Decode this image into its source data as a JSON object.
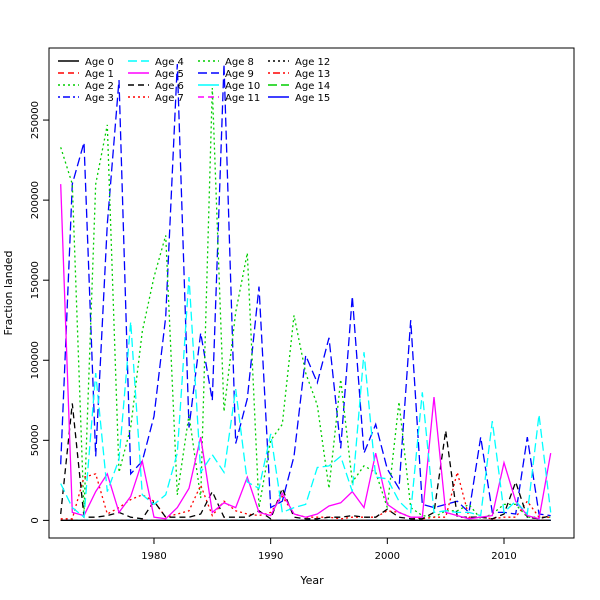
{
  "chart_data": {
    "type": "line",
    "title": "",
    "xlabel": "Year",
    "ylabel": "Fraction landed",
    "xlim": [
      1971,
      2016
    ],
    "ylim": [
      -11000,
      295000
    ],
    "x_ticks": [
      1980,
      1990,
      2000,
      2010
    ],
    "y_ticks": [
      0,
      50000,
      100000,
      150000,
      200000,
      250000
    ],
    "grid": false,
    "legend_position": "top-left",
    "x": [
      1972,
      1973,
      1974,
      1975,
      1976,
      1977,
      1978,
      1979,
      1980,
      1981,
      1982,
      1983,
      1984,
      1985,
      1986,
      1987,
      1988,
      1989,
      1990,
      1991,
      1992,
      1993,
      1994,
      1995,
      1996,
      1997,
      1998,
      1999,
      2000,
      2001,
      2002,
      2003,
      2004,
      2005,
      2006,
      2007,
      2008,
      2009,
      2010,
      2011,
      2012,
      2013,
      2014
    ],
    "series": [
      {
        "name": "Age 0",
        "color": "#000000",
        "dash": "solid",
        "values": [
          0,
          0,
          0,
          0,
          0,
          0,
          0,
          0,
          0,
          0,
          0,
          0,
          0,
          0,
          0,
          0,
          0,
          0,
          0,
          0,
          0,
          0,
          0,
          0,
          0,
          0,
          0,
          0,
          0,
          0,
          0,
          0,
          0,
          0,
          0,
          0,
          0,
          0,
          0,
          0,
          0,
          0,
          0
        ]
      },
      {
        "name": "Age 1",
        "color": "#ff0000",
        "dash": "dashed",
        "values": [
          0,
          0,
          0,
          0,
          0,
          0,
          0,
          0,
          0,
          0,
          0,
          0,
          0,
          0,
          0,
          0,
          0,
          0,
          0,
          0,
          0,
          0,
          0,
          0,
          0,
          0,
          0,
          0,
          0,
          0,
          0,
          0,
          0,
          0,
          0,
          0,
          0,
          0,
          0,
          0,
          0,
          0,
          0
        ]
      },
      {
        "name": "Age 2",
        "color": "#00cd00",
        "dash": "dotted",
        "values": [
          0,
          0,
          0,
          0,
          0,
          0,
          0,
          0,
          0,
          0,
          0,
          0,
          0,
          0,
          0,
          0,
          0,
          0,
          0,
          0,
          0,
          0,
          0,
          0,
          0,
          0,
          0,
          0,
          0,
          0,
          0,
          0,
          0,
          0,
          0,
          0,
          0,
          0,
          0,
          0,
          0,
          0,
          0
        ]
      },
      {
        "name": "Age 3",
        "color": "#0000ff",
        "dash": "dotdash",
        "values": [
          0,
          0,
          0,
          0,
          0,
          0,
          0,
          0,
          0,
          0,
          0,
          0,
          0,
          0,
          0,
          0,
          0,
          0,
          0,
          0,
          0,
          0,
          0,
          0,
          0,
          0,
          0,
          0,
          0,
          0,
          0,
          0,
          0,
          0,
          0,
          0,
          0,
          0,
          0,
          0,
          0,
          0,
          0
        ]
      },
      {
        "name": "Age 4",
        "color": "#00ffff",
        "dash": "longdash",
        "values": [
          23000,
          8000,
          2000,
          92000,
          18000,
          38000,
          124000,
          16000,
          10000,
          16000,
          42000,
          152000,
          30000,
          41000,
          30000,
          82000,
          24000,
          20000,
          54000,
          5000,
          8000,
          10000,
          33000,
          34000,
          40000,
          18000,
          105000,
          27000,
          26000,
          12000,
          5000,
          80000,
          5000,
          6000,
          5000,
          5000,
          3000,
          62000,
          5000,
          12000,
          4000,
          66000,
          5000
        ]
      },
      {
        "name": "Age 5",
        "color": "#ff00ff",
        "dash": "solid",
        "values": [
          210000,
          5000,
          3000,
          18000,
          29000,
          5000,
          15000,
          37000,
          2000,
          1000,
          8000,
          20000,
          52000,
          5000,
          11000,
          8000,
          27000,
          5000,
          3000,
          17000,
          4000,
          2000,
          4000,
          9000,
          11000,
          18000,
          8000,
          42000,
          10000,
          5000,
          2000,
          2000,
          77000,
          5000,
          3000,
          1000,
          2000,
          3000,
          36000,
          12000,
          3000,
          1000,
          42000
        ]
      },
      {
        "name": "Age 6",
        "color": "#000000",
        "dash": "dashed",
        "values": [
          4000,
          73000,
          2000,
          2000,
          3000,
          5000,
          2000,
          1000,
          12000,
          2000,
          2000,
          2000,
          4000,
          18000,
          2000,
          2000,
          2000,
          6000,
          1000,
          20000,
          2000,
          1000,
          1000,
          2000,
          2000,
          3000,
          2000,
          2000,
          7000,
          2000,
          1000,
          1000,
          5000,
          56000,
          2000,
          2000,
          2000,
          1000,
          4000,
          24000,
          2000,
          1000,
          3000
        ]
      },
      {
        "name": "Age 7",
        "color": "#ff0000",
        "dash": "dotted",
        "values": [
          1000,
          1000,
          27000,
          29000,
          4000,
          8000,
          13000,
          16000,
          12000,
          2000,
          4000,
          6000,
          22000,
          3000,
          12000,
          6000,
          4000,
          3000,
          5000,
          15000,
          4000,
          2000,
          2000,
          2000,
          1000,
          2000,
          2000,
          2000,
          6000,
          5000,
          2000,
          1000,
          2000,
          2000,
          30000,
          2000,
          2000,
          1000,
          2000,
          2000,
          12000,
          2000,
          2000
        ]
      },
      {
        "name": "Age 8",
        "color": "#00cd00",
        "dash": "dotted",
        "values": [
          233000,
          210000,
          5000,
          210000,
          247000,
          30000,
          58000,
          118000,
          152000,
          178000,
          16000,
          66000,
          14000,
          270000,
          68000,
          130000,
          167000,
          8000,
          50000,
          60000,
          128000,
          92000,
          72000,
          20000,
          88000,
          24000,
          34000,
          30000,
          8000,
          74000,
          8000,
          3000,
          2000,
          6000,
          6000,
          10000,
          1000,
          4000,
          10000,
          10000,
          2000,
          2000,
          2000
        ]
      },
      {
        "name": "Age 9",
        "color": "#0000ff",
        "dash": "longdash",
        "values": [
          35000,
          210000,
          236000,
          40000,
          185000,
          275000,
          29000,
          37000,
          65000,
          127000,
          285000,
          58000,
          117000,
          75000,
          285000,
          48000,
          76000,
          146000,
          8000,
          12000,
          40000,
          103000,
          86000,
          114000,
          45000,
          140000,
          42000,
          60000,
          32000,
          20000,
          125000,
          10000,
          8000,
          10000,
          12000,
          5000,
          52000,
          5000,
          5000,
          4000,
          52000,
          4000,
          3000
        ]
      },
      {
        "name": "Age 10",
        "color": "#00ffff",
        "dash": "solid",
        "values": [
          0,
          0,
          0,
          0,
          0,
          0,
          0,
          0,
          0,
          0,
          0,
          0,
          0,
          0,
          0,
          0,
          0,
          0,
          0,
          0,
          0,
          0,
          0,
          0,
          0,
          0,
          0,
          0,
          0,
          0,
          0,
          0,
          0,
          0,
          0,
          0,
          0,
          0,
          0,
          0,
          0,
          0,
          0
        ]
      },
      {
        "name": "Age 11",
        "color": "#ff00ff",
        "dash": "dashed",
        "values": [
          0,
          0,
          0,
          0,
          0,
          0,
          0,
          0,
          0,
          0,
          0,
          0,
          0,
          0,
          0,
          0,
          0,
          0,
          0,
          0,
          0,
          0,
          0,
          0,
          0,
          0,
          0,
          0,
          0,
          0,
          0,
          0,
          0,
          0,
          0,
          0,
          0,
          0,
          0,
          0,
          0,
          0,
          0
        ]
      },
      {
        "name": "Age 12",
        "color": "#000000",
        "dash": "dotted",
        "values": [
          0,
          0,
          0,
          0,
          0,
          0,
          0,
          0,
          0,
          0,
          0,
          0,
          0,
          0,
          0,
          0,
          0,
          0,
          0,
          0,
          0,
          0,
          0,
          0,
          0,
          0,
          0,
          0,
          0,
          0,
          0,
          0,
          0,
          0,
          0,
          0,
          0,
          0,
          0,
          0,
          0,
          0,
          0
        ]
      },
      {
        "name": "Age 13",
        "color": "#ff0000",
        "dash": "dotdash",
        "values": [
          0,
          0,
          0,
          0,
          0,
          0,
          0,
          0,
          0,
          0,
          0,
          0,
          0,
          0,
          0,
          0,
          0,
          0,
          0,
          0,
          0,
          0,
          0,
          0,
          0,
          0,
          0,
          0,
          0,
          0,
          0,
          0,
          0,
          0,
          0,
          0,
          0,
          0,
          0,
          0,
          0,
          0,
          0
        ]
      },
      {
        "name": "Age 14",
        "color": "#00cd00",
        "dash": "longdash",
        "values": [
          0,
          0,
          0,
          0,
          0,
          0,
          0,
          0,
          0,
          0,
          0,
          0,
          0,
          0,
          0,
          0,
          0,
          0,
          0,
          0,
          0,
          0,
          0,
          0,
          0,
          0,
          0,
          0,
          0,
          0,
          0,
          0,
          0,
          0,
          0,
          0,
          0,
          0,
          0,
          0,
          0,
          0,
          0
        ]
      },
      {
        "name": "Age 15",
        "color": "#0000ff",
        "dash": "solid",
        "values": [
          0,
          0,
          0,
          0,
          0,
          0,
          0,
          0,
          0,
          0,
          0,
          0,
          0,
          0,
          0,
          0,
          0,
          0,
          0,
          0,
          0,
          0,
          0,
          0,
          0,
          0,
          0,
          0,
          0,
          0,
          0,
          0,
          0,
          0,
          0,
          0,
          0,
          0,
          0,
          0,
          0,
          0,
          0
        ]
      }
    ]
  }
}
